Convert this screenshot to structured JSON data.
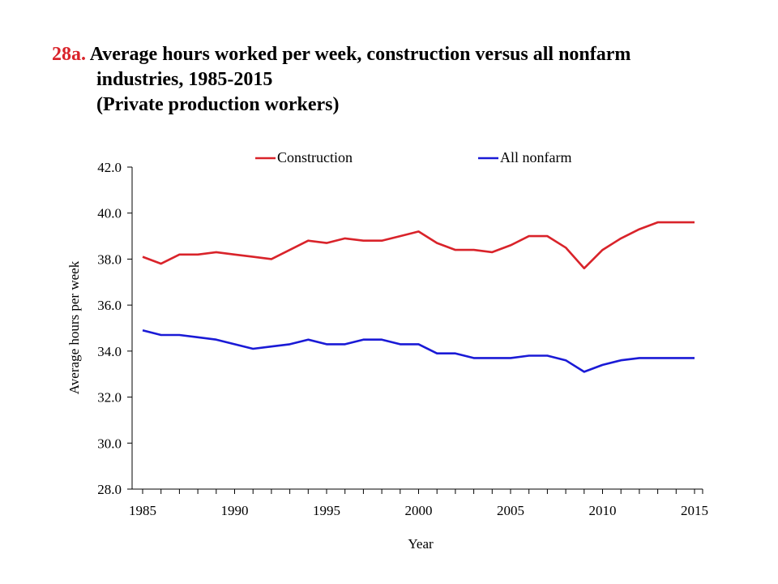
{
  "title": {
    "number": "28a.",
    "line1": "Average hours worked per week, construction versus all nonfarm",
    "line2": "industries, 1985-2015",
    "line3": "(Private production workers)"
  },
  "colors": {
    "title_number": "#d9232a",
    "construction": "#d9232a",
    "all_nonfarm": "#1a1ad6"
  },
  "chart_data": {
    "type": "line",
    "xlabel": "Year",
    "ylabel": "Average  hours per week",
    "xlim": [
      1985,
      2015
    ],
    "ylim": [
      28.0,
      42.0
    ],
    "x_ticks": [
      "1985",
      "1990",
      "1995",
      "2000",
      "2005",
      "2010",
      "2015"
    ],
    "y_ticks": [
      "28.0",
      "30.0",
      "32.0",
      "34.0",
      "36.0",
      "38.0",
      "40.0",
      "42.0"
    ],
    "legend_position": "top",
    "x": [
      1985,
      1986,
      1987,
      1988,
      1989,
      1990,
      1991,
      1992,
      1993,
      1994,
      1995,
      1996,
      1997,
      1998,
      1999,
      2000,
      2001,
      2002,
      2003,
      2004,
      2005,
      2006,
      2007,
      2008,
      2009,
      2010,
      2011,
      2012,
      2013,
      2014,
      2015
    ],
    "series": [
      {
        "name": "Construction",
        "values": [
          38.1,
          37.8,
          38.2,
          38.2,
          38.3,
          38.2,
          38.1,
          38.0,
          38.4,
          38.8,
          38.7,
          38.9,
          38.8,
          38.8,
          39.0,
          39.2,
          38.7,
          38.4,
          38.4,
          38.3,
          38.6,
          39.0,
          39.0,
          38.5,
          37.6,
          38.4,
          38.9,
          39.3,
          39.6,
          39.6,
          39.6
        ]
      },
      {
        "name": "All nonfarm",
        "values": [
          34.9,
          34.7,
          34.7,
          34.6,
          34.5,
          34.3,
          34.1,
          34.2,
          34.3,
          34.5,
          34.3,
          34.3,
          34.5,
          34.5,
          34.3,
          34.3,
          33.9,
          33.9,
          33.7,
          33.7,
          33.7,
          33.8,
          33.8,
          33.6,
          33.1,
          33.4,
          33.6,
          33.7,
          33.7,
          33.7,
          33.7
        ]
      }
    ]
  }
}
